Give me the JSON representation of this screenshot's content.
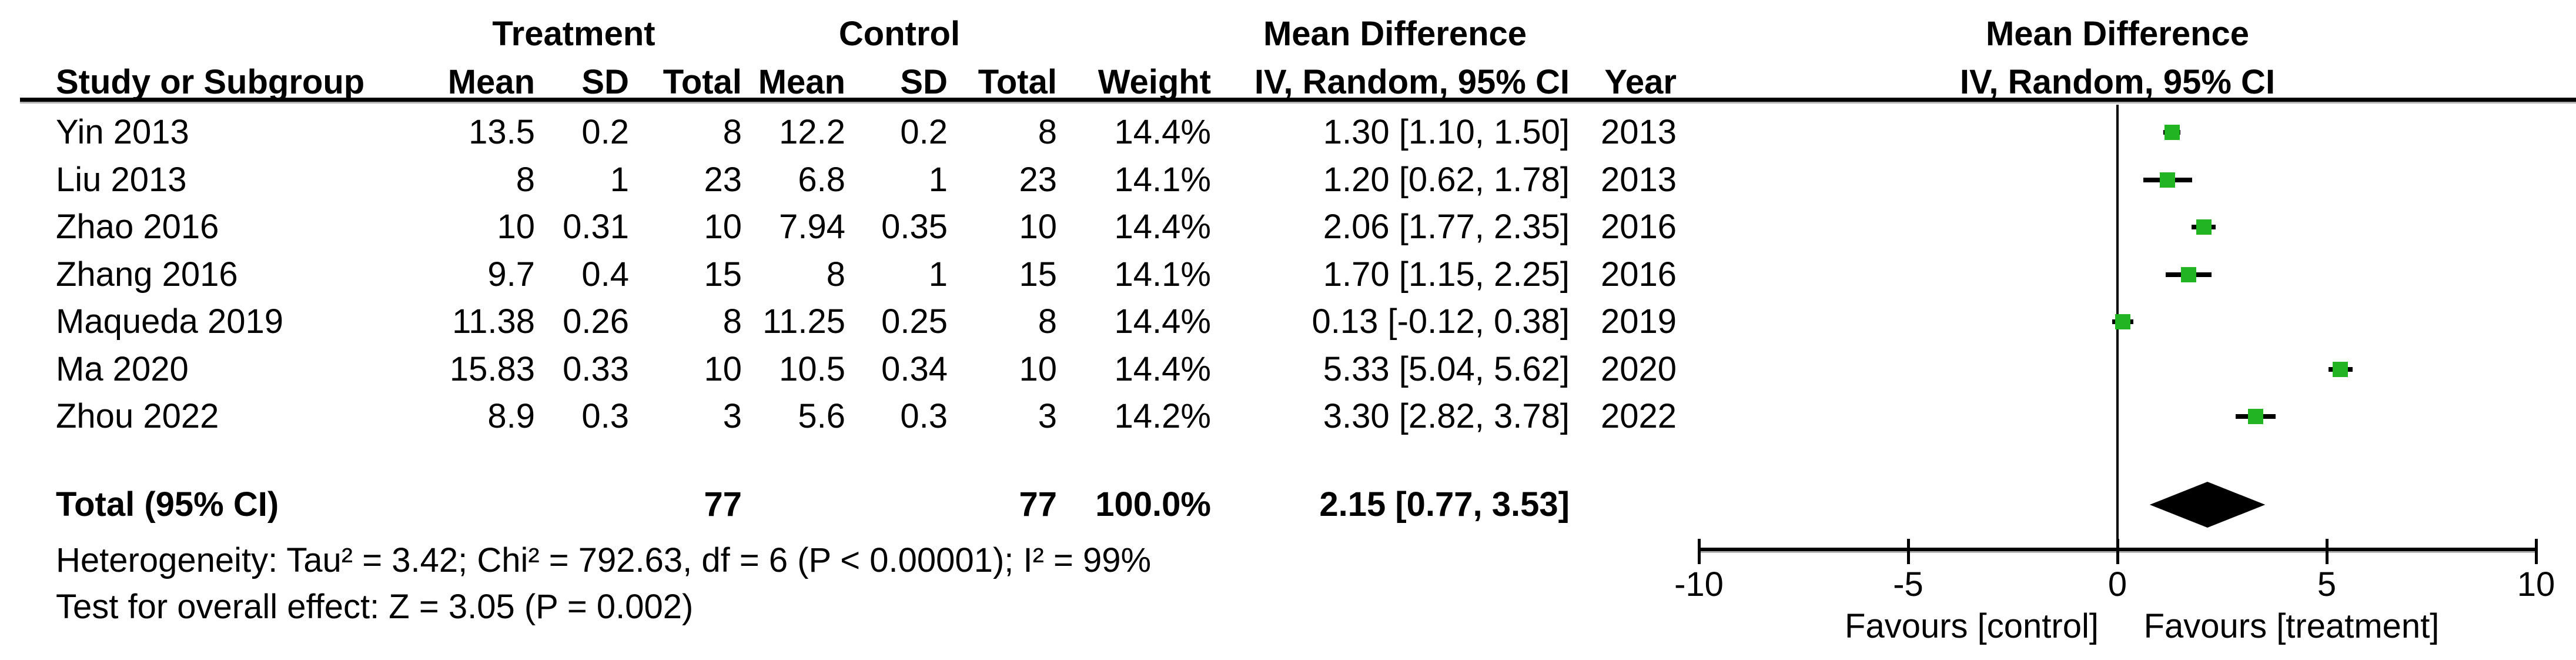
{
  "chart_data": {
    "type": "scatter",
    "subtype": "forest-plot",
    "title": "Mean Difference forest plot (IV, Random, 95% CI)",
    "legend_position": "none",
    "grid": false,
    "groups": {
      "treatment_label": "Treatment",
      "control_label": "Control",
      "effect_label": "Mean Difference",
      "plot_effect_label": "Mean Difference"
    },
    "columns": {
      "study": "Study or Subgroup",
      "mean": "Mean",
      "sd": "SD",
      "total": "Total",
      "mean2": "Mean",
      "sd2": "SD",
      "total2": "Total",
      "weight": "Weight",
      "ci": "IV, Random, 95% CI",
      "year": "Year",
      "plot_ci": "IV, Random, 95% CI"
    },
    "studies": [
      {
        "name": "Yin 2013",
        "t_mean": "13.5",
        "t_sd": "0.2",
        "t_total": "8",
        "c_mean": "12.2",
        "c_sd": "0.2",
        "c_total": "8",
        "weight": "14.4%",
        "ci_text": "1.30 [1.10, 1.50]",
        "year": "2013",
        "md": 1.3,
        "lo": 1.1,
        "hi": 1.5
      },
      {
        "name": "Liu 2013",
        "t_mean": "8",
        "t_sd": "1",
        "t_total": "23",
        "c_mean": "6.8",
        "c_sd": "1",
        "c_total": "23",
        "weight": "14.1%",
        "ci_text": "1.20 [0.62, 1.78]",
        "year": "2013",
        "md": 1.2,
        "lo": 0.62,
        "hi": 1.78
      },
      {
        "name": "Zhao 2016",
        "t_mean": "10",
        "t_sd": "0.31",
        "t_total": "10",
        "c_mean": "7.94",
        "c_sd": "0.35",
        "c_total": "10",
        "weight": "14.4%",
        "ci_text": "2.06 [1.77, 2.35]",
        "year": "2016",
        "md": 2.06,
        "lo": 1.77,
        "hi": 2.35
      },
      {
        "name": "Zhang 2016",
        "t_mean": "9.7",
        "t_sd": "0.4",
        "t_total": "15",
        "c_mean": "8",
        "c_sd": "1",
        "c_total": "15",
        "weight": "14.1%",
        "ci_text": "1.70 [1.15, 2.25]",
        "year": "2016",
        "md": 1.7,
        "lo": 1.15,
        "hi": 2.25
      },
      {
        "name": "Maqueda 2019",
        "t_mean": "11.38",
        "t_sd": "0.26",
        "t_total": "8",
        "c_mean": "11.25",
        "c_sd": "0.25",
        "c_total": "8",
        "weight": "14.4%",
        "ci_text": "0.13 [-0.12, 0.38]",
        "year": "2019",
        "md": 0.13,
        "lo": -0.12,
        "hi": 0.38
      },
      {
        "name": "Ma 2020",
        "t_mean": "15.83",
        "t_sd": "0.33",
        "t_total": "10",
        "c_mean": "10.5",
        "c_sd": "0.34",
        "c_total": "10",
        "weight": "14.4%",
        "ci_text": "5.33 [5.04, 5.62]",
        "year": "2020",
        "md": 5.33,
        "lo": 5.04,
        "hi": 5.62
      },
      {
        "name": "Zhou 2022",
        "t_mean": "8.9",
        "t_sd": "0.3",
        "t_total": "3",
        "c_mean": "5.6",
        "c_sd": "0.3",
        "c_total": "3",
        "weight": "14.2%",
        "ci_text": "3.30 [2.82, 3.78]",
        "year": "2022",
        "md": 3.3,
        "lo": 2.82,
        "hi": 3.78
      }
    ],
    "total": {
      "label": "Total (95% CI)",
      "t_total": "77",
      "c_total": "77",
      "weight": "100.0%",
      "ci_text": "2.15 [0.77, 3.53]",
      "md": 2.15,
      "lo": 0.77,
      "hi": 3.53
    },
    "footnotes": {
      "heterogeneity": "Heterogeneity: Tau² = 3.42; Chi² = 792.63, df = 6 (P < 0.00001); I² = 99%",
      "overall_effect": "Test for overall effect: Z = 3.05 (P = 0.002)"
    },
    "axis": {
      "min": -10,
      "max": 10,
      "ticks": [
        -10,
        -5,
        0,
        5,
        10
      ],
      "favours_left": "Favours [control]",
      "favours_right": "Favours [treatment]"
    },
    "colors": {
      "marker_green": "#22b422",
      "diamond_black": "#000000",
      "line_black": "#000000",
      "rule_shadow_gray": "#b3b3b3"
    }
  }
}
